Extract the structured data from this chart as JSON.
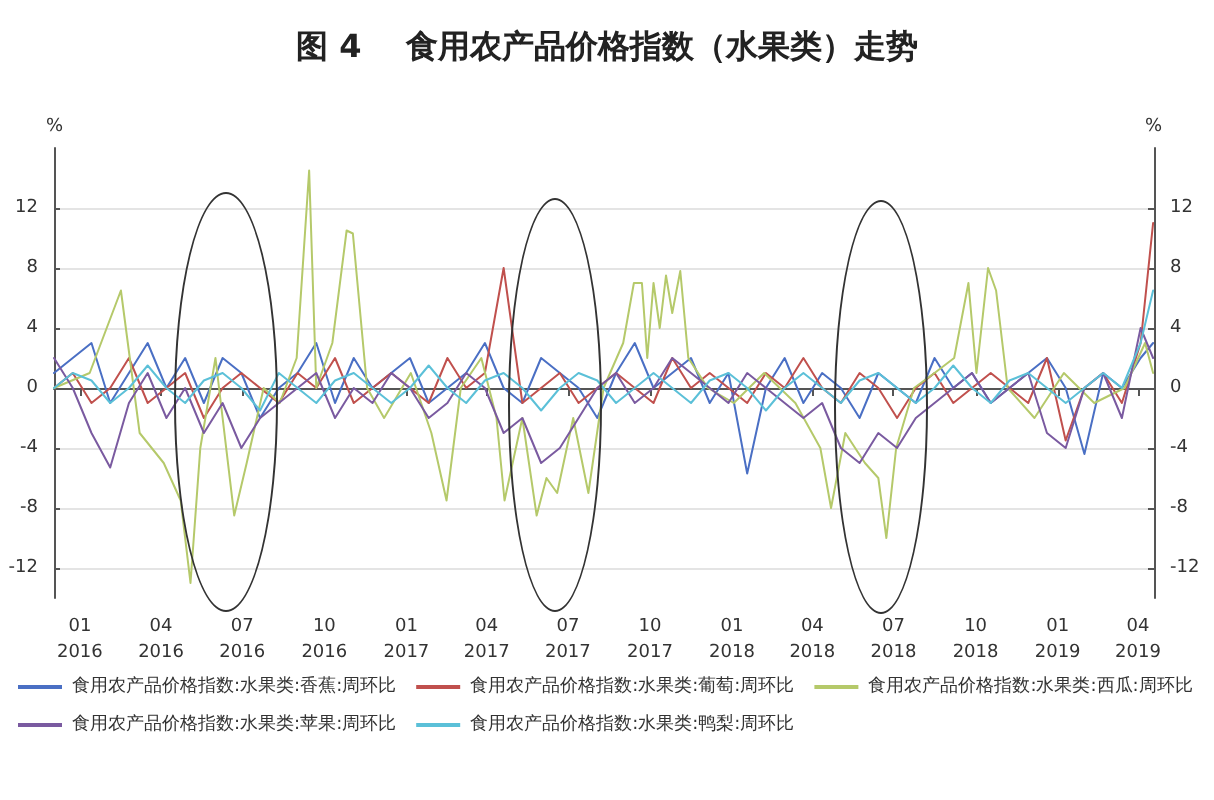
{
  "chart_data": {
    "type": "line",
    "title": "图 4    食用农产品价格指数（水果类）走势",
    "ylabel": "%",
    "y2label": "%",
    "x": [
      "2015-12-03",
      "2015-12-24",
      "2016-01-14",
      "2016-02-04",
      "2016-02-25",
      "2016-03-17",
      "2016-04-07",
      "2016-04-28",
      "2016-05-19",
      "2016-06-09",
      "2016-06-30",
      "2016-07-21",
      "2016-08-11",
      "2016-09-01",
      "2016-09-22",
      "2016-10-13",
      "2016-11-03",
      "2016-11-24",
      "2016-12-15",
      "2017-01-05",
      "2017-01-26",
      "2017-02-16",
      "2017-03-09",
      "2017-03-30",
      "2017-04-20",
      "2017-05-11",
      "2017-06-01",
      "2017-06-22",
      "2017-07-13",
      "2017-08-03",
      "2017-08-24",
      "2017-09-14",
      "2017-10-05",
      "2017-10-26",
      "2017-11-16",
      "2017-12-07",
      "2017-12-28",
      "2018-01-18",
      "2018-02-08",
      "2018-03-01",
      "2018-03-22",
      "2018-04-12",
      "2018-05-03",
      "2018-05-24",
      "2018-06-14",
      "2018-07-05",
      "2018-07-26",
      "2018-08-16",
      "2018-09-06",
      "2018-09-27",
      "2018-10-18",
      "2018-11-08",
      "2018-11-29",
      "2018-12-20",
      "2019-01-10",
      "2019-01-31",
      "2019-02-21",
      "2019-03-14",
      "2019-04-04",
      "2019-04-18"
    ],
    "series": [
      {
        "name": "食用农产品价格指数:水果类:香蕉:周环比",
        "color": "#4a6fc4",
        "values": [
          1,
          2,
          3,
          -1,
          1,
          3,
          0,
          2,
          -1,
          2,
          1,
          -2,
          0,
          1,
          3,
          -1,
          2,
          0,
          1,
          2,
          -1,
          0,
          1,
          3,
          0,
          -1,
          2,
          1,
          0,
          -2,
          1,
          3,
          0,
          1,
          2,
          -1,
          1,
          -5.7,
          0,
          2,
          -1,
          1,
          0,
          -2,
          1,
          0,
          -1,
          2,
          0,
          1,
          -1,
          0,
          1,
          2,
          0,
          -4.4,
          1,
          0,
          2,
          3
        ]
      },
      {
        "name": "食用农产品价格指数:水果类:葡萄:周环比",
        "color": "#c0504d",
        "values": [
          0,
          1,
          -1,
          0,
          2,
          -1,
          0,
          1,
          -2,
          0,
          1,
          0,
          -1,
          1,
          0,
          2,
          -1,
          0,
          1,
          0,
          -1,
          2,
          0,
          1,
          8,
          -1,
          0,
          1,
          -1,
          0,
          1,
          0,
          -1,
          2,
          0,
          1,
          0,
          -1,
          1,
          0,
          2,
          0,
          -1,
          1,
          0,
          -2,
          0,
          1,
          -1,
          0,
          1,
          0,
          -1,
          2,
          -3.5,
          0,
          1,
          -1,
          3,
          11
        ]
      },
      {
        "name": "食用农产品价格指数:水果类:西瓜:周环比",
        "color": "#b5c96a",
        "x": [
          "2015-12-03",
          "2016-01-12",
          "2016-02-16",
          "2016-03-08",
          "2016-04-04",
          "2016-04-23",
          "2016-05-04",
          "2016-05-15",
          "2016-06-01",
          "2016-06-22",
          "2016-07-06",
          "2016-07-25",
          "2016-08-12",
          "2016-08-31",
          "2016-09-14",
          "2016-09-22",
          "2016-10-10",
          "2016-10-26",
          "2016-11-02",
          "2016-11-18",
          "2016-12-07",
          "2017-01-06",
          "2017-01-29",
          "2017-02-15",
          "2017-03-03",
          "2017-03-26",
          "2017-04-12",
          "2017-04-21",
          "2017-05-11",
          "2017-05-27",
          "2017-06-07",
          "2017-06-19",
          "2017-07-07",
          "2017-07-24",
          "2017-08-10",
          "2017-09-01",
          "2017-09-13",
          "2017-09-22",
          "2017-09-28",
          "2017-10-05",
          "2017-10-12",
          "2017-10-19",
          "2017-10-26",
          "2017-11-04",
          "2017-11-13",
          "2017-12-05",
          "2018-01-03",
          "2018-02-06",
          "2018-03-13",
          "2018-04-10",
          "2018-04-22",
          "2018-05-08",
          "2018-05-30",
          "2018-06-14",
          "2018-06-23",
          "2018-07-04",
          "2018-07-24",
          "2018-08-16",
          "2018-09-07",
          "2018-09-23",
          "2018-10-02",
          "2018-10-15",
          "2018-10-24",
          "2018-11-06",
          "2018-12-06",
          "2019-01-08",
          "2019-02-11",
          "2019-03-17",
          "2019-04-09",
          "2019-04-18"
        ],
        "values": [
          0,
          1,
          6.5,
          -3,
          -5,
          -7.5,
          -13,
          -4,
          2,
          -8.5,
          -5,
          0,
          -1,
          2,
          14.5,
          0,
          3,
          10.5,
          10.3,
          0,
          -2,
          1,
          -3,
          -7.5,
          0,
          2,
          -2,
          -7.5,
          -2,
          -8.5,
          -6,
          -7,
          -2,
          -7,
          0,
          3,
          7,
          7,
          2,
          7,
          4,
          7.5,
          5,
          7.8,
          2,
          0,
          -1,
          1,
          -1,
          -4,
          -8,
          -3,
          -5,
          -6,
          -10,
          -4,
          0,
          1,
          2,
          7,
          1,
          8,
          6.5,
          0,
          -2,
          1,
          -1,
          0,
          3,
          1
        ]
      },
      {
        "name": "食用农产品价格指数:水果类:苹果:周环比",
        "color": "#7a5aa0",
        "values": [
          2,
          0,
          -3,
          -5.3,
          -1,
          1,
          -2,
          0,
          -3,
          -1,
          -4,
          -2,
          -1,
          0,
          1,
          -2,
          0,
          -1,
          1,
          0,
          -2,
          -1,
          1,
          0,
          -3,
          -2,
          -5,
          -4,
          -2,
          0,
          1,
          -1,
          0,
          2,
          1,
          0,
          -1,
          1,
          0,
          -1,
          -2,
          -1,
          -4,
          -5,
          -3,
          -4,
          -2,
          -1,
          0,
          1,
          -1,
          0,
          1,
          -3,
          -4,
          0,
          1,
          -2,
          4,
          2
        ]
      },
      {
        "name": "食用农产品价格指数:水果类:鸭梨:周环比",
        "color": "#5bc0d8",
        "values": [
          0,
          1,
          0.5,
          -1,
          0,
          1.5,
          0,
          -1,
          0.5,
          1,
          0,
          -1.5,
          1,
          0,
          -1,
          0.5,
          1,
          0,
          -1,
          0,
          1.5,
          0,
          -1,
          0.5,
          1,
          0,
          -1.5,
          0,
          1,
          0.5,
          -1,
          0,
          1,
          0,
          -1,
          0.5,
          1,
          0,
          -1.5,
          0,
          1,
          0,
          -1,
          0.5,
          1,
          0,
          -1,
          0,
          1.5,
          0,
          -1,
          0.5,
          1,
          0,
          -1,
          0,
          1,
          0,
          3,
          6.5
        ]
      }
    ],
    "xlim": [
      "2015-12-03",
      "2019-04-19"
    ],
    "xticks": [
      {
        "value": "2016-01-01",
        "label": "01\n2016"
      },
      {
        "value": "2016-04-01",
        "label": "04\n2016"
      },
      {
        "value": "2016-07-01",
        "label": "07\n2016"
      },
      {
        "value": "2016-10-01",
        "label": "10\n2016"
      },
      {
        "value": "2017-01-01",
        "label": "01\n2017"
      },
      {
        "value": "2017-04-01",
        "label": "04\n2017"
      },
      {
        "value": "2017-07-01",
        "label": "07\n2017"
      },
      {
        "value": "2017-10-01",
        "label": "10\n2017"
      },
      {
        "value": "2018-01-01",
        "label": "01\n2018"
      },
      {
        "value": "2018-04-01",
        "label": "04\n2018"
      },
      {
        "value": "2018-07-01",
        "label": "07\n2018"
      },
      {
        "value": "2018-10-01",
        "label": "10\n2018"
      },
      {
        "value": "2019-01-01",
        "label": "01\n2019"
      },
      {
        "value": "2019-04-01",
        "label": "04\n2019"
      }
    ],
    "ylim": [
      -14,
      16
    ],
    "yticks": [
      -12,
      -8,
      -4,
      0,
      4,
      8,
      12
    ],
    "y2lim": [
      -14,
      16
    ],
    "y2ticks": [
      -12,
      -8,
      -4,
      0,
      4,
      8,
      12
    ],
    "grid": "y",
    "legend": "bottom",
    "marker": "none",
    "line_style": "solid"
  }
}
